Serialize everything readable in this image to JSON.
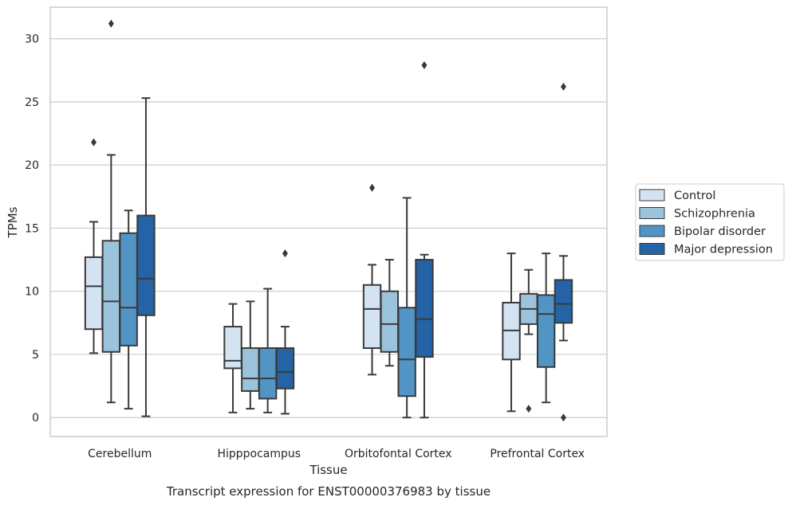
{
  "chart_data": {
    "type": "boxplot",
    "caption": "Transcript expression for ENST00000376983 by tissue",
    "xlabel": "Tissue",
    "ylabel": "TPMs",
    "ylim": [
      -1.5,
      32.5
    ],
    "yticks": [
      0,
      5,
      10,
      15,
      20,
      25,
      30
    ],
    "ytick_labels": [
      "0",
      "5",
      "10",
      "15",
      "20",
      "25",
      "30"
    ],
    "grid": "horizontal",
    "legend_position": "right",
    "categories": [
      "Cerebellum",
      "Hipppocampus",
      "Orbitofontal Cortex",
      "Prefrontal Cortex"
    ],
    "series": [
      {
        "name": "Control",
        "color": "#d4e3f2",
        "boxes": [
          {
            "whisker_low": 5.1,
            "q1": 7.0,
            "median": 10.4,
            "q3": 12.7,
            "whisker_high": 15.5,
            "outliers": [
              21.8
            ]
          },
          {
            "whisker_low": 0.4,
            "q1": 3.9,
            "median": 4.5,
            "q3": 7.2,
            "whisker_high": 9.0,
            "outliers": []
          },
          {
            "whisker_low": 3.4,
            "q1": 5.5,
            "median": 8.6,
            "q3": 10.5,
            "whisker_high": 12.1,
            "outliers": [
              18.2
            ]
          },
          {
            "whisker_low": 0.5,
            "q1": 4.6,
            "median": 6.9,
            "q3": 9.1,
            "whisker_high": 13.0,
            "outliers": []
          }
        ]
      },
      {
        "name": "Schizophrenia",
        "color": "#9cc3dc",
        "boxes": [
          {
            "whisker_low": 1.2,
            "q1": 5.2,
            "median": 9.2,
            "q3": 14.0,
            "whisker_high": 20.8,
            "outliers": [
              31.2
            ]
          },
          {
            "whisker_low": 0.7,
            "q1": 2.1,
            "median": 3.1,
            "q3": 5.5,
            "whisker_high": 9.2,
            "outliers": []
          },
          {
            "whisker_low": 4.1,
            "q1": 5.2,
            "median": 7.4,
            "q3": 10.0,
            "whisker_high": 12.5,
            "outliers": []
          },
          {
            "whisker_low": 6.6,
            "q1": 7.4,
            "median": 8.6,
            "q3": 9.8,
            "whisker_high": 11.7,
            "outliers": [
              0.7
            ]
          }
        ]
      },
      {
        "name": "Bipolar disorder",
        "color": "#5295c5",
        "boxes": [
          {
            "whisker_low": 0.7,
            "q1": 5.7,
            "median": 8.7,
            "q3": 14.6,
            "whisker_high": 16.4,
            "outliers": []
          },
          {
            "whisker_low": 0.4,
            "q1": 1.5,
            "median": 3.1,
            "q3": 5.5,
            "whisker_high": 10.2,
            "outliers": []
          },
          {
            "whisker_low": 0.0,
            "q1": 1.7,
            "median": 4.6,
            "q3": 8.7,
            "whisker_high": 17.4,
            "outliers": []
          },
          {
            "whisker_low": 1.2,
            "q1": 4.0,
            "median": 8.2,
            "q3": 9.7,
            "whisker_high": 13.0,
            "outliers": []
          }
        ]
      },
      {
        "name": "Major depression",
        "color": "#2463a6",
        "boxes": [
          {
            "whisker_low": 0.1,
            "q1": 8.1,
            "median": 11.0,
            "q3": 16.0,
            "whisker_high": 25.3,
            "outliers": []
          },
          {
            "whisker_low": 0.3,
            "q1": 2.3,
            "median": 3.6,
            "q3": 5.5,
            "whisker_high": 7.2,
            "outliers": [
              13.0
            ]
          },
          {
            "whisker_low": 0.0,
            "q1": 4.8,
            "median": 7.8,
            "q3": 12.5,
            "whisker_high": 12.9,
            "outliers": [
              27.9
            ]
          },
          {
            "whisker_low": 6.1,
            "q1": 7.5,
            "median": 9.0,
            "q3": 10.9,
            "whisker_high": 12.8,
            "outliers": [
              0.0,
              26.2
            ]
          }
        ]
      }
    ]
  }
}
